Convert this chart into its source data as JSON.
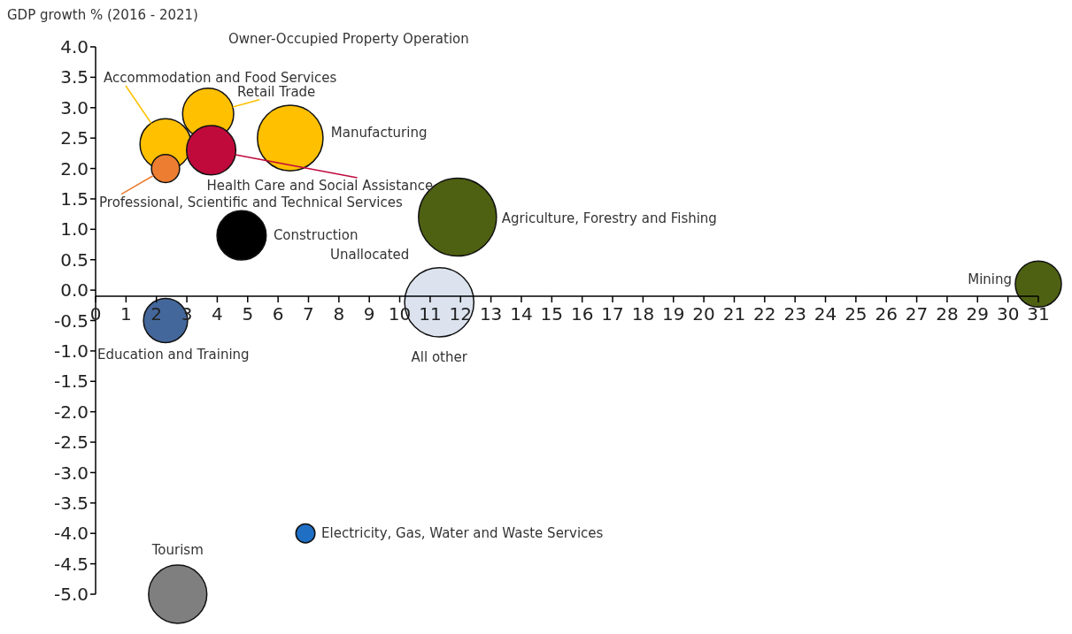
{
  "chart_data": {
    "type": "bubble",
    "ylabel": "GDP growth % (2016 - 2021)",
    "relative": false,
    "xlim": [
      0,
      31
    ],
    "xticks": [
      0,
      1,
      2,
      3,
      4,
      5,
      6,
      7,
      8,
      9,
      10,
      11,
      12,
      13,
      14,
      15,
      16,
      17,
      18,
      19,
      20,
      21,
      22,
      23,
      24,
      25,
      26,
      27,
      28,
      29,
      30,
      31
    ],
    "ylim": [
      -5,
      4
    ],
    "yticks": [
      {
        "value": 4,
        "label": "4.0"
      },
      {
        "value": 3.5,
        "label": "3.5"
      },
      {
        "value": 3,
        "label": "3.0"
      },
      {
        "value": 2.5,
        "label": "2.5"
      },
      {
        "value": 2,
        "label": "2.0"
      },
      {
        "value": 1.5,
        "label": "1.5"
      },
      {
        "value": 1,
        "label": "1.0"
      },
      {
        "value": 0.5,
        "label": "0.5"
      },
      {
        "value": 0,
        "label": "0.0"
      },
      {
        "value": -0.5,
        "label": "-0.5"
      },
      {
        "value": -1,
        "label": "-1.0"
      },
      {
        "value": -1.5,
        "label": "-1.5"
      },
      {
        "value": -2,
        "label": "-2.0"
      },
      {
        "value": -2.5,
        "label": "-2.5"
      },
      {
        "value": -3,
        "label": "-3.0"
      },
      {
        "value": -3.5,
        "label": "-3.5"
      },
      {
        "value": -4,
        "label": "-4.0"
      },
      {
        "value": -4.5,
        "label": "-4.5"
      },
      {
        "value": -5,
        "label": "-5.0"
      }
    ],
    "series": [
      {
        "name": "Accommodation and Food Services",
        "color": "#ffc000",
        "x": [
          2.3
        ],
        "values": [
          2.4
        ],
        "sizes": [
          0.43
        ]
      },
      {
        "name": "Retail Trade",
        "color": "#ffc000",
        "x": [
          3.7
        ],
        "values": [
          2.9
        ],
        "sizes": [
          0.43
        ]
      },
      {
        "name": "Manufacturing",
        "color": "#ffc000",
        "x": [
          6.4
        ],
        "values": [
          2.5
        ],
        "sizes": [
          0.71
        ]
      },
      {
        "name": "Health Care and Social Assistance",
        "color": "#c00a3c",
        "x": [
          3.8
        ],
        "values": [
          2.3
        ],
        "sizes": [
          0.4
        ]
      },
      {
        "name": "Professional, Scientific and Technical Services",
        "color": "#ed7d31",
        "x": [
          2.3
        ],
        "values": [
          2.0
        ],
        "sizes": [
          0.13
        ]
      },
      {
        "name": "Construction",
        "color": "#000000",
        "x": [
          4.8
        ],
        "values": [
          0.9
        ],
        "sizes": [
          0.4
        ]
      },
      {
        "name": "Agriculture, Forestry and Fishing",
        "color": "#4e6112",
        "x": [
          11.9
        ],
        "values": [
          1.2
        ],
        "sizes": [
          1
        ]
      },
      {
        "name": "All other",
        "color": "#dce3ef",
        "x": [
          11.3
        ],
        "values": [
          -0.2
        ],
        "sizes": [
          0.79
        ]
      },
      {
        "name": "Mining",
        "color": "#4e6112",
        "x": [
          31
        ],
        "values": [
          0.1
        ],
        "sizes": [
          0.35
        ]
      },
      {
        "name": "Education and Training",
        "color": "#44679b",
        "x": [
          2.3
        ],
        "values": [
          -0.5
        ],
        "sizes": [
          0.32
        ]
      },
      {
        "name": "Electricity, Gas, Water and Waste Services",
        "color": "#1f6fc5",
        "x": [
          6.9
        ],
        "values": [
          -4.0
        ],
        "sizes": [
          0.06
        ]
      },
      {
        "name": "Tourism",
        "color": "#7f7f7f",
        "x": [
          2.7
        ],
        "values": [
          -5.0
        ],
        "sizes": [
          0.56
        ]
      }
    ],
    "annotations": [
      "Owner-Occupied Property Operation",
      "Unallocated"
    ]
  }
}
